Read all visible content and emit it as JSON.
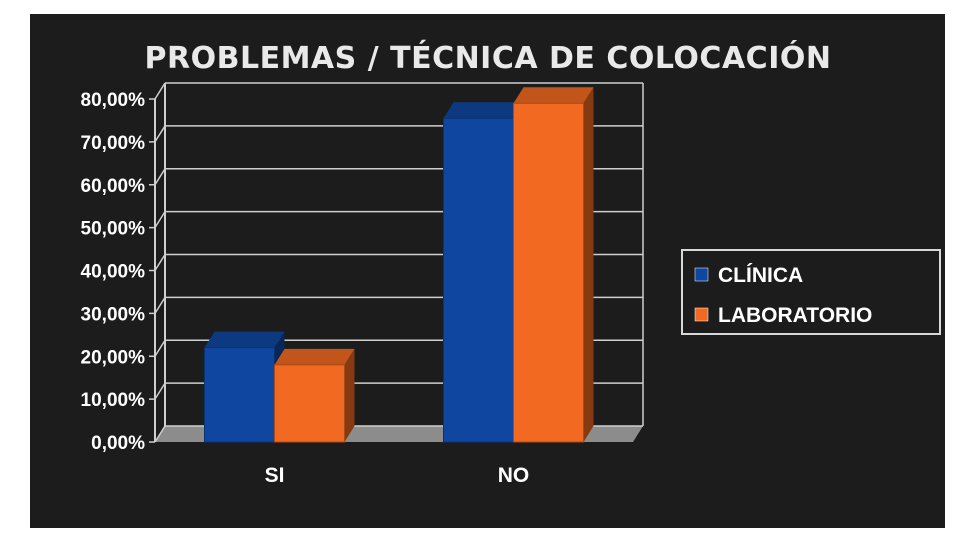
{
  "chart_data": {
    "type": "bar",
    "title": "PROBLEMAS / TÉCNICA DE COLOCACIÓN",
    "categories": [
      "SI",
      "NO"
    ],
    "series": [
      {
        "name": "CLÍNICA",
        "values": [
          22.0,
          75.5
        ],
        "color": "#0f47a0"
      },
      {
        "name": "LABORATORIO",
        "values": [
          18.0,
          79.0
        ],
        "color": "#f26a21"
      }
    ],
    "y_ticks": [
      "0,00%",
      "10,00%",
      "20,00%",
      "30,00%",
      "40,00%",
      "50,00%",
      "60,00%",
      "70,00%",
      "80,00%"
    ],
    "ylim": [
      0,
      80
    ],
    "grid": true,
    "legend_position": "right",
    "colors": {
      "background": "#1c1c1c",
      "floor": "#8c8c8c",
      "grid": "#cfcfcf"
    }
  }
}
